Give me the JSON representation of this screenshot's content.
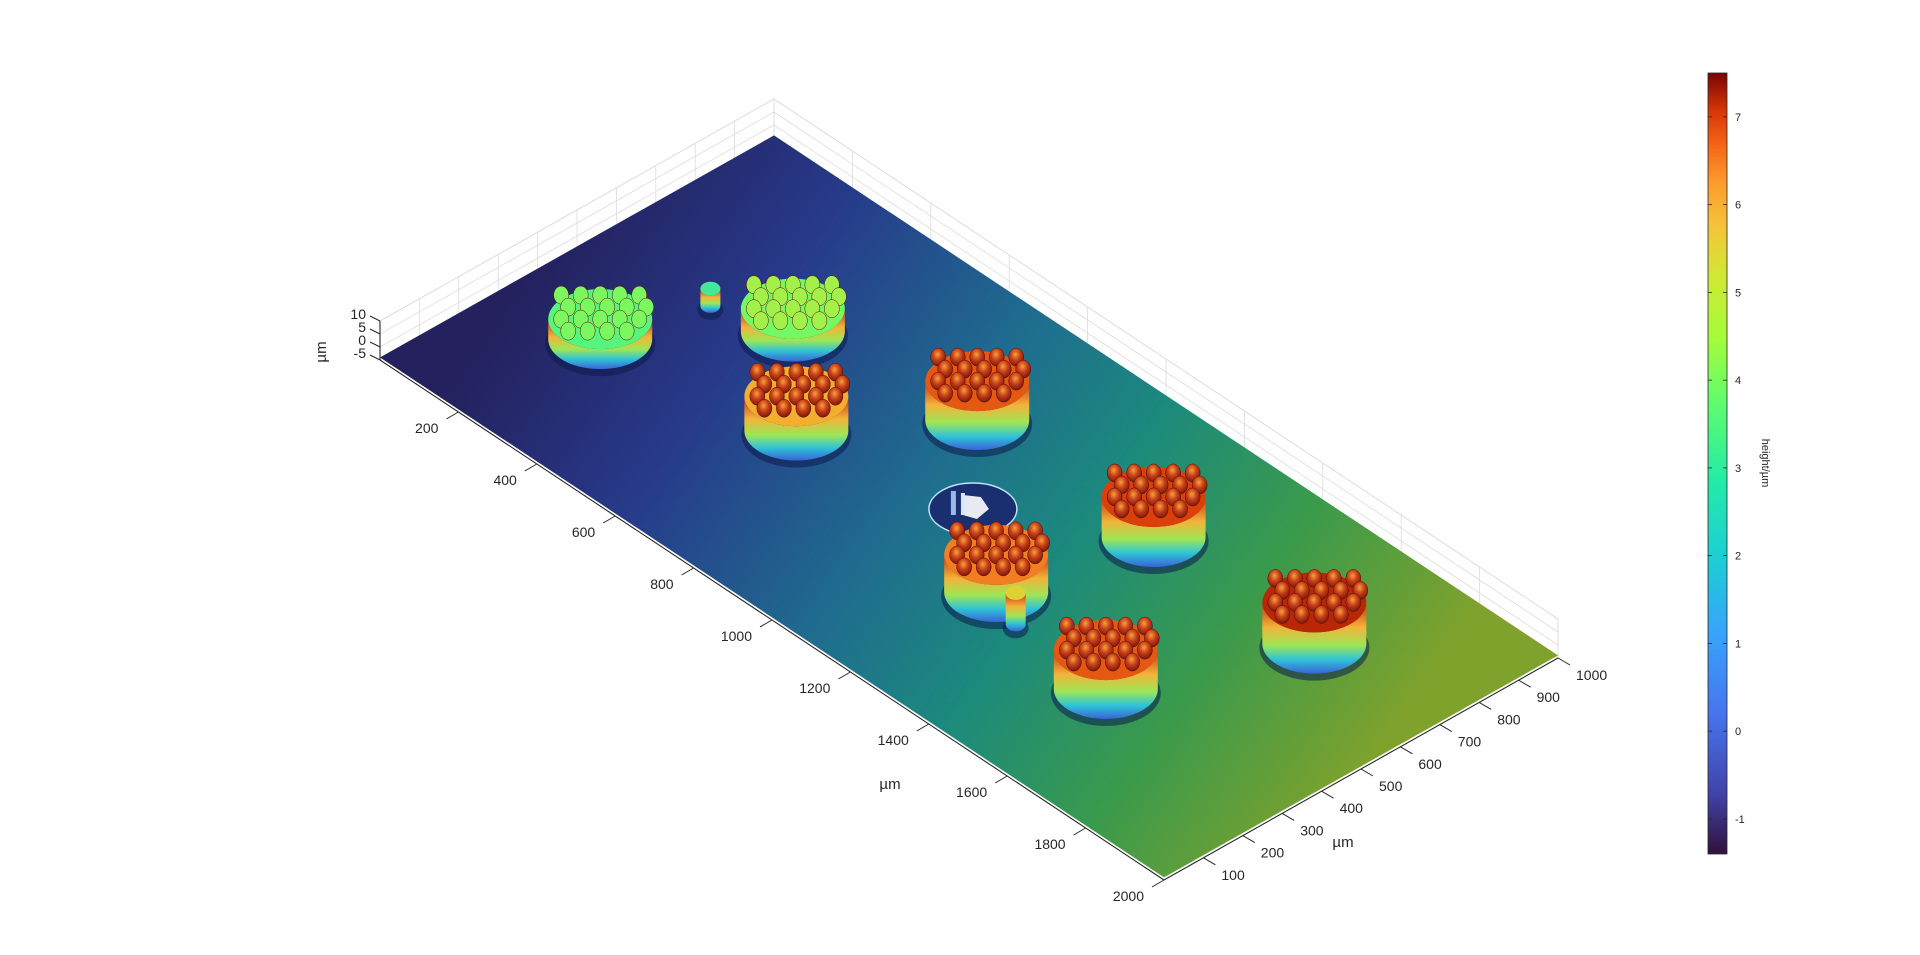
{
  "chart_data": {
    "type": "surface",
    "xlabel": "µm",
    "ylabel": "µm",
    "zlabel": "µm",
    "xlim": [
      0,
      2000
    ],
    "ylim": [
      0,
      1000
    ],
    "zlim": [
      -5,
      10
    ],
    "x_ticks": [
      200,
      400,
      600,
      800,
      1000,
      1200,
      1400,
      1600,
      1800,
      2000
    ],
    "y_ticks": [
      100,
      200,
      300,
      400,
      500,
      600,
      700,
      800,
      900,
      1000
    ],
    "z_ticks": [
      10,
      5,
      0,
      -5
    ],
    "grid": true,
    "colormap": "turbo",
    "colorbar": {
      "label": "height/µm",
      "ticks": [
        7,
        6,
        5,
        4,
        3,
        2,
        1,
        0,
        -1
      ],
      "range": [
        -1.4,
        7.5
      ],
      "location": "right"
    },
    "features": [
      {
        "x": 430,
        "y": 620,
        "height": 4.0
      },
      {
        "x": 220,
        "y": 340,
        "height": 3.5
      },
      {
        "x": 830,
        "y": 690,
        "height": 6.8
      },
      {
        "x": 640,
        "y": 420,
        "height": 6.0
      },
      {
        "x": 1010,
        "y": 500,
        "height": -1.0
      },
      {
        "x": 1280,
        "y": 690,
        "height": 7.0
      },
      {
        "x": 1210,
        "y": 360,
        "height": 6.5
      },
      {
        "x": 1690,
        "y": 690,
        "height": 7.2
      },
      {
        "x": 1540,
        "y": 310,
        "height": 6.8
      },
      {
        "x": 280,
        "y": 560,
        "height": 3.0
      },
      {
        "x": 1300,
        "y": 320,
        "height": 5.5
      }
    ]
  }
}
